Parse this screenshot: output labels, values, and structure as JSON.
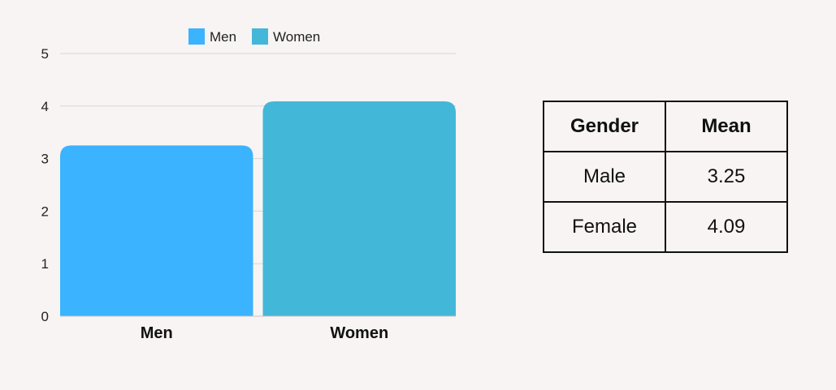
{
  "chart_data": {
    "type": "bar",
    "categories": [
      "Men",
      "Women"
    ],
    "series": [
      {
        "name": "Men",
        "values": [
          3.25,
          null
        ],
        "color": "#3bb3ff"
      },
      {
        "name": "Women",
        "values": [
          null,
          4.09
        ],
        "color": "#43b7d8"
      }
    ],
    "title": "",
    "xlabel": "",
    "ylabel": "",
    "ylim": [
      0,
      5
    ],
    "yticks": [
      "0",
      "1",
      "2",
      "3",
      "4",
      "5"
    ],
    "grid": true,
    "legend_position": "top-center"
  },
  "table": {
    "headers": [
      "Gender",
      "Mean"
    ],
    "rows": [
      [
        "Male",
        "3.25"
      ],
      [
        "Female",
        "4.09"
      ]
    ]
  }
}
